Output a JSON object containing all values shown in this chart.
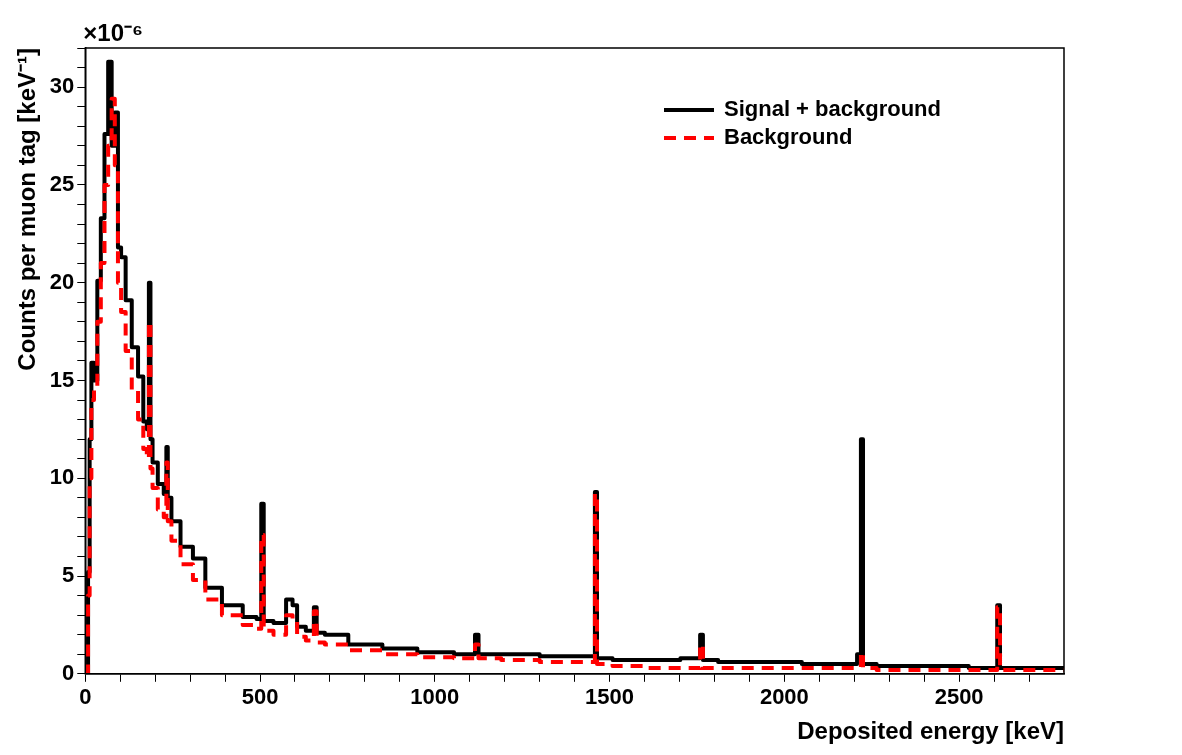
{
  "chart_data": {
    "type": "step",
    "xlabel": "Deposited energy [keV]",
    "ylabel": "Counts per muon tag [keV⁻¹]",
    "annotations": [
      "×10⁻⁶"
    ],
    "xlim": [
      0,
      2800
    ],
    "xticks": [
      0,
      {
        "value": 100,
        "label": null
      },
      {
        "value": 200,
        "label": null
      },
      {
        "value": 300,
        "label": null
      },
      {
        "value": 400,
        "label": null
      },
      500,
      {
        "value": 600,
        "label": null
      },
      {
        "value": 700,
        "label": null
      },
      {
        "value": 800,
        "label": null
      },
      {
        "value": 900,
        "label": null
      },
      1000,
      {
        "value": 1100,
        "label": null
      },
      {
        "value": 1200,
        "label": null
      },
      {
        "value": 1300,
        "label": null
      },
      {
        "value": 1400,
        "label": null
      },
      1500,
      {
        "value": 1600,
        "label": null
      },
      {
        "value": 1700,
        "label": null
      },
      {
        "value": 1800,
        "label": null
      },
      {
        "value": 1900,
        "label": null
      },
      2000,
      {
        "value": 2100,
        "label": null
      },
      {
        "value": 2200,
        "label": null
      },
      {
        "value": 2300,
        "label": null
      },
      {
        "value": 2400,
        "label": null
      },
      2500,
      {
        "value": 2600,
        "label": null
      },
      {
        "value": 2700,
        "label": null
      }
    ],
    "ylim": [
      0,
      32
    ],
    "yticks": [
      0,
      {
        "value": 1,
        "label": null
      },
      {
        "value": 2,
        "label": null
      },
      {
        "value": 3,
        "label": null
      },
      {
        "value": 4,
        "label": null
      },
      5,
      {
        "value": 6,
        "label": null
      },
      {
        "value": 7,
        "label": null
      },
      {
        "value": 8,
        "label": null
      },
      {
        "value": 9,
        "label": null
      },
      10,
      {
        "value": 11,
        "label": null
      },
      {
        "value": 12,
        "label": null
      },
      {
        "value": 13,
        "label": null
      },
      {
        "value": 14,
        "label": null
      },
      15,
      {
        "value": 16,
        "label": null
      },
      {
        "value": 17,
        "label": null
      },
      {
        "value": 18,
        "label": null
      },
      {
        "value": 19,
        "label": null
      },
      20,
      {
        "value": 21,
        "label": null
      },
      {
        "value": 22,
        "label": null
      },
      {
        "value": 23,
        "label": null
      },
      {
        "value": 24,
        "label": null
      },
      25,
      {
        "value": 26,
        "label": null
      },
      {
        "value": 27,
        "label": null
      },
      {
        "value": 28,
        "label": null
      },
      {
        "value": 29,
        "label": null
      },
      30,
      {
        "value": 31,
        "label": null
      },
      {
        "value": 32,
        "label": null
      }
    ],
    "grid": false,
    "legend": "top right",
    "marker": "none",
    "series": [
      {
        "name": "Signal + background",
        "color": "#000000",
        "line_style": "solid",
        "x": [
          0,
          6,
          10,
          15,
          20,
          30,
          39,
          50,
          60,
          71,
          80,
          89,
          98,
          107,
          124,
          142,
          160,
          172,
          180,
          184,
          189,
          196,
          219,
          230,
          234,
          238,
          255,
          290,
          326,
          361,
          421,
          480,
          500,
          507,
          514,
          563,
          586,
          600,
          612,
          650,
          658,
          666,
          705,
          800,
          900,
          1000,
          1110,
          1120,
          1130,
          1250,
          1350,
          1455,
          1461,
          1467,
          1550,
          1650,
          1755,
          1763,
          1771,
          1850,
          2000,
          2100,
          2200,
          2216,
          2222,
          2228,
          2300,
          2450,
          2605,
          2613,
          2621,
          2700,
          2800
        ],
        "values": [
          0,
          0,
          5.2,
          12,
          15.9,
          15,
          20.1,
          23.3,
          27.6,
          31.3,
          27,
          28.7,
          21.8,
          21.3,
          19.1,
          16.7,
          15.2,
          12.9,
          12.5,
          20.0,
          12.0,
          10.8,
          9.7,
          9.2,
          11.6,
          9.0,
          7.8,
          6.5,
          5.9,
          4.4,
          3.5,
          2.9,
          2.8,
          8.7,
          2.7,
          2.6,
          3.8,
          3.5,
          2.4,
          2.2,
          3.4,
          2.1,
          2.0,
          1.5,
          1.3,
          1.1,
          1.0,
          2.0,
          1.0,
          1.0,
          0.9,
          0.9,
          9.3,
          0.8,
          0.7,
          0.7,
          0.8,
          2.0,
          0.7,
          0.6,
          0.6,
          0.5,
          0.5,
          1.0,
          12.0,
          0.5,
          0.4,
          0.4,
          0.3,
          3.5,
          0.3,
          0.3,
          0.3
        ]
      },
      {
        "name": "Background",
        "color": "#ff0000",
        "line_style": "dashed",
        "x": [
          0,
          6,
          10,
          15,
          20,
          30,
          39,
          50,
          60,
          71,
          80,
          89,
          98,
          107,
          124,
          142,
          160,
          172,
          180,
          184,
          189,
          196,
          219,
          230,
          234,
          238,
          255,
          290,
          326,
          361,
          421,
          480,
          500,
          507,
          514,
          563,
          586,
          600,
          612,
          650,
          658,
          666,
          705,
          800,
          900,
          1000,
          1110,
          1120,
          1130,
          1250,
          1350,
          1455,
          1461,
          1467,
          1550,
          1650,
          1755,
          1763,
          1771,
          1850,
          2000,
          2100,
          2200,
          2216,
          2222,
          2228,
          2300,
          2450,
          2605,
          2613,
          2621,
          2700,
          2800
        ],
        "values": [
          0,
          0,
          4,
          10,
          14,
          14.5,
          18,
          21,
          25,
          27,
          29.4,
          26,
          20,
          18.5,
          16.5,
          14.5,
          13,
          11.5,
          11,
          18.0,
          10.5,
          9.5,
          8.4,
          8.0,
          10.8,
          7.8,
          6.8,
          5.6,
          4.8,
          3.8,
          3.0,
          2.5,
          2.3,
          7.1,
          2.2,
          2.0,
          3.0,
          2.8,
          1.9,
          1.7,
          3.2,
          1.6,
          1.5,
          1.2,
          1.0,
          0.85,
          0.8,
          1.5,
          0.8,
          0.7,
          0.6,
          0.6,
          9.2,
          0.5,
          0.4,
          0.3,
          0.3,
          1.5,
          0.3,
          0.3,
          0.3,
          0.3,
          0.3,
          0.3,
          1.1,
          0.3,
          0.2,
          0.2,
          0.2,
          3.4,
          0.2,
          0.2,
          0.2
        ]
      }
    ]
  }
}
